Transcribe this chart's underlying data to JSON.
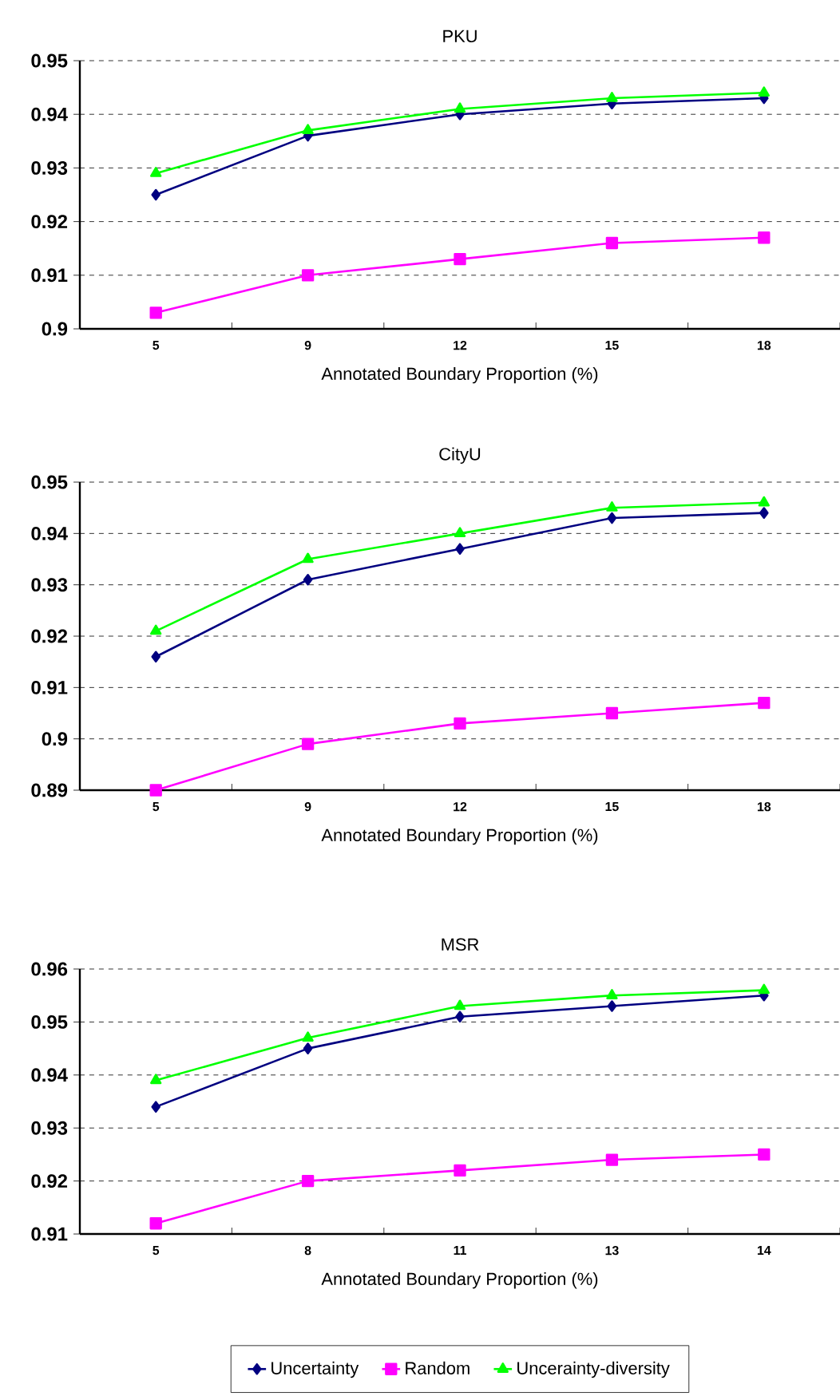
{
  "chart_data": [
    {
      "type": "line",
      "title": "PKU",
      "xlabel": "Annotated Boundary Proportion (%)",
      "categories": [
        "5",
        "9",
        "12",
        "15",
        "18"
      ],
      "ylim": [
        0.9,
        0.95
      ],
      "yticks": [
        0.9,
        0.91,
        0.92,
        0.93,
        0.94,
        0.95
      ],
      "grid": "y",
      "legend": false,
      "series": [
        {
          "color": "#000080",
          "marker": "diamond",
          "values": [
            0.925,
            0.936,
            0.94,
            0.942,
            0.943
          ]
        },
        {
          "color": "#ff00ff",
          "marker": "square",
          "values": [
            0.903,
            0.91,
            0.913,
            0.916,
            0.917
          ]
        },
        {
          "color": "#00ff00",
          "marker": "triangle",
          "values": [
            0.929,
            0.937,
            0.941,
            0.943,
            0.944
          ]
        }
      ]
    },
    {
      "type": "line",
      "title": "CityU",
      "xlabel": "Annotated Boundary Proportion (%)",
      "categories": [
        "5",
        "9",
        "12",
        "15",
        "18"
      ],
      "ylim": [
        0.89,
        0.95
      ],
      "yticks": [
        0.89,
        0.9,
        0.91,
        0.92,
        0.93,
        0.94,
        0.95
      ],
      "grid": "y",
      "legend": false,
      "series": [
        {
          "color": "#000080",
          "marker": "diamond",
          "values": [
            0.916,
            0.931,
            0.937,
            0.943,
            0.944
          ]
        },
        {
          "color": "#ff00ff",
          "marker": "square",
          "values": [
            0.89,
            0.899,
            0.903,
            0.905,
            0.907
          ]
        },
        {
          "color": "#00ff00",
          "marker": "triangle",
          "values": [
            0.921,
            0.935,
            0.94,
            0.945,
            0.946
          ]
        }
      ]
    },
    {
      "type": "line",
      "title": "MSR",
      "xlabel": "Annotated Boundary Proportion (%)",
      "categories": [
        "5",
        "8",
        "11",
        "13",
        "14"
      ],
      "ylim": [
        0.91,
        0.96
      ],
      "yticks": [
        0.91,
        0.92,
        0.93,
        0.94,
        0.95,
        0.96
      ],
      "grid": "y",
      "legend": "bottom",
      "series": [
        {
          "name": "Uncertainty",
          "color": "#000080",
          "marker": "diamond",
          "values": [
            0.934,
            0.945,
            0.951,
            0.953,
            0.955
          ]
        },
        {
          "name": "Random",
          "color": "#ff00ff",
          "marker": "square",
          "values": [
            0.912,
            0.92,
            0.922,
            0.924,
            0.925
          ]
        },
        {
          "name": "Uncerainty-diversity",
          "color": "#00ff00",
          "marker": "triangle",
          "values": [
            0.939,
            0.947,
            0.953,
            0.955,
            0.956
          ]
        }
      ]
    }
  ]
}
